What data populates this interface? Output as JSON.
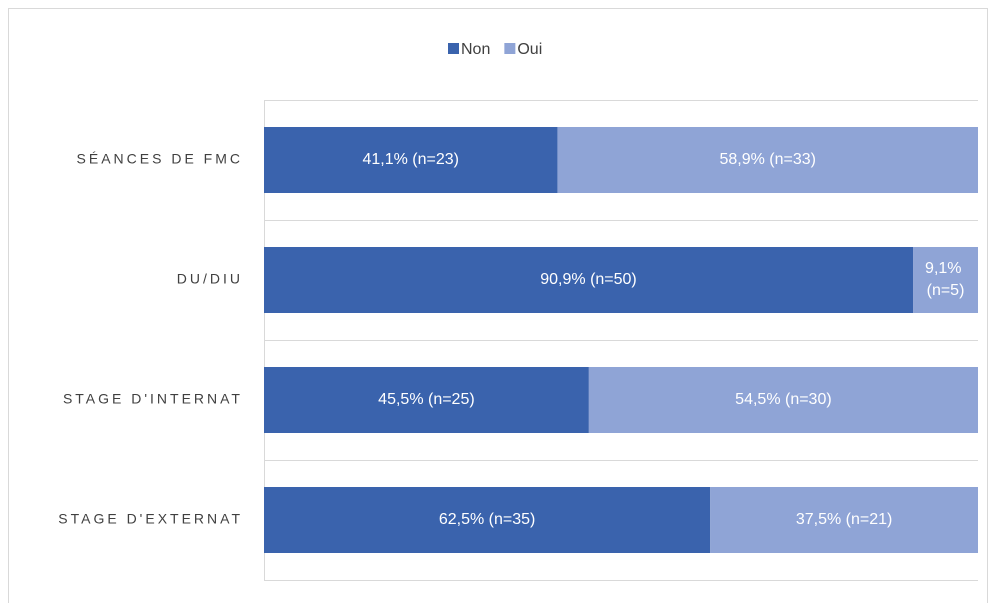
{
  "chart_data": {
    "type": "stacked_barh",
    "categories": [
      "SÉANCES DE FMC",
      "DU/DIU",
      "STAGE D'INTERNAT",
      "STAGE D'EXTERNAT"
    ],
    "series": [
      {
        "name": "Non",
        "color": "#3a63ad",
        "values": [
          41.1,
          90.9,
          45.5,
          62.5
        ],
        "value_labels": [
          "41,1% (n=23)",
          "90,9% (n=50)",
          "45,5% (n=25)",
          "62,5% (n=35)"
        ]
      },
      {
        "name": "Oui",
        "color": "#8fa4d6",
        "values": [
          58.9,
          9.1,
          54.5,
          37.5
        ],
        "value_labels": [
          "58,9% (n=33)",
          "9,1% (n=5)",
          "54,5% (n=30)",
          "37,5% (n=21)"
        ]
      }
    ],
    "xlim": [
      0,
      100
    ],
    "legend": "top"
  }
}
